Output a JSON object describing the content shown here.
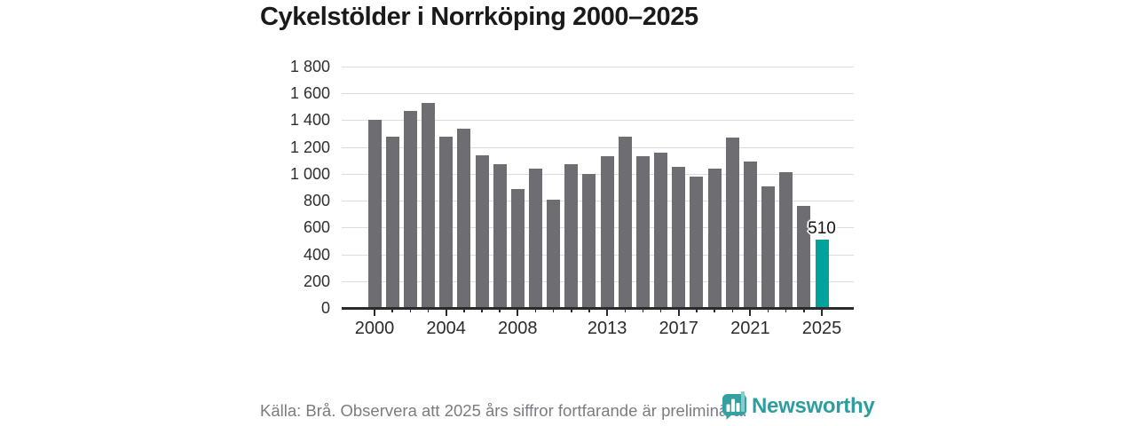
{
  "header": {
    "title": "Cykelstölder i Norrköping 2000–2025"
  },
  "footer": {
    "source_note": "Källa: Brå. Observera att 2025 års siffror fortfarande är preliminära.",
    "brand_name": "Newsworthy",
    "brand_icon": "newsworthy-bubble-barchart-icon"
  },
  "colors": {
    "bar": "#6e6d72",
    "highlight": "#00a29a",
    "grid": "#dcdcdc",
    "axis": "#2b2b2b",
    "title_text": "#1a1a1a",
    "footer_text": "#7b7b83",
    "brand_teal": "#2c9ea0"
  },
  "chart_data": {
    "type": "bar",
    "title": "Cykelstölder i Norrköping 2000–2025",
    "categories": [
      2000,
      2001,
      2002,
      2003,
      2004,
      2005,
      2006,
      2007,
      2008,
      2009,
      2010,
      2011,
      2012,
      2013,
      2014,
      2015,
      2016,
      2017,
      2018,
      2019,
      2020,
      2021,
      2022,
      2023,
      2024,
      2025
    ],
    "values": [
      1400,
      1280,
      1470,
      1530,
      1280,
      1340,
      1140,
      1070,
      890,
      1040,
      810,
      1070,
      1000,
      1130,
      1280,
      1130,
      1160,
      1050,
      980,
      1040,
      1270,
      1090,
      910,
      1010,
      760,
      510
    ],
    "highlight_category": 2025,
    "highlight_value_label": "510",
    "x_tick_labels": [
      "2000",
      "2004",
      "2008",
      "2013",
      "2017",
      "2021",
      "2025"
    ],
    "y_ticks": [
      0,
      200,
      400,
      600,
      800,
      1000,
      1200,
      1400,
      1600,
      1800
    ],
    "y_tick_labels": [
      "0",
      "200",
      "400",
      "600",
      "800",
      "1 000",
      "1 200",
      "1 400",
      "1 600",
      "1 800"
    ],
    "ylim": [
      0,
      1800
    ],
    "grid": "horizontal-only",
    "legend": "none",
    "bar_color": "#6e6d72",
    "highlight_color": "#00a29a"
  }
}
